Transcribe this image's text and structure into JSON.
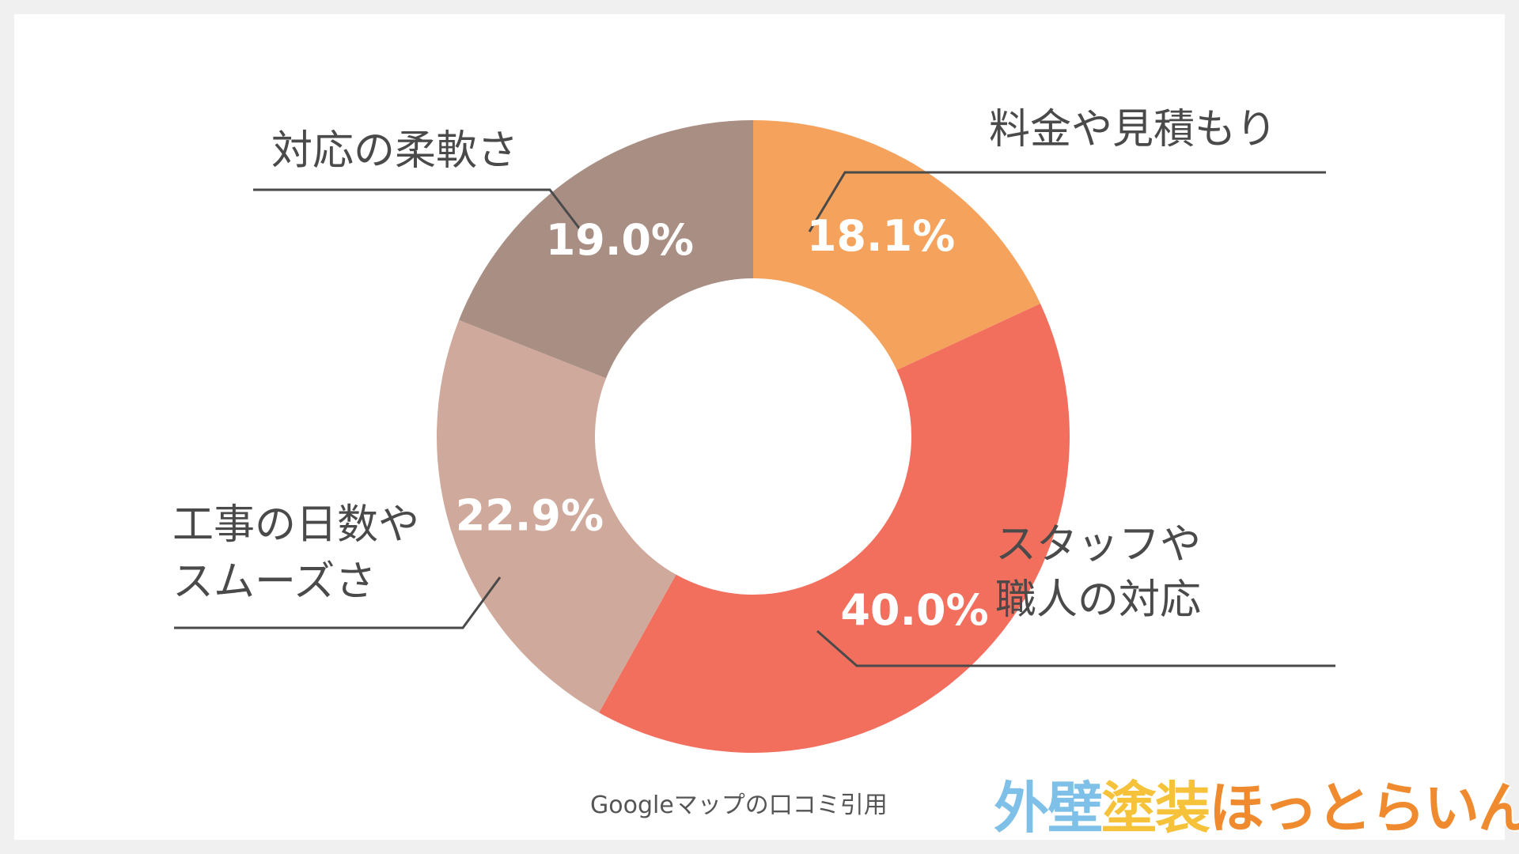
{
  "chart_data": {
    "type": "pie",
    "donut": true,
    "categories": [
      "料金や見積もり",
      "スタッフや職人の対応",
      "工事の日数やスムーズさ",
      "対応の柔軟さ"
    ],
    "category_lines": [
      [
        "料金や見積もり"
      ],
      [
        "スタッフや",
        "職人の対応"
      ],
      [
        "工事の日数や",
        "スムーズさ"
      ],
      [
        "対応の柔軟さ"
      ]
    ],
    "values": [
      18.1,
      40.0,
      22.9,
      19.0
    ],
    "value_labels": [
      "18.1%",
      "40.0%",
      "22.9%",
      "19.0%"
    ],
    "colors": [
      "#f4a25c",
      "#f26f5e",
      "#cfa99b",
      "#a88e83"
    ],
    "start": "12 o'clock",
    "direction": "clockwise"
  },
  "source_note": "Googleマップの口コミ引用",
  "logo": {
    "parts": [
      {
        "text": "外壁",
        "color": "#7fc0e8"
      },
      {
        "text": "塗装",
        "color": "#f5c23a"
      },
      {
        "text": "ほっとらいん",
        "color": "#ef8a2e"
      }
    ]
  }
}
